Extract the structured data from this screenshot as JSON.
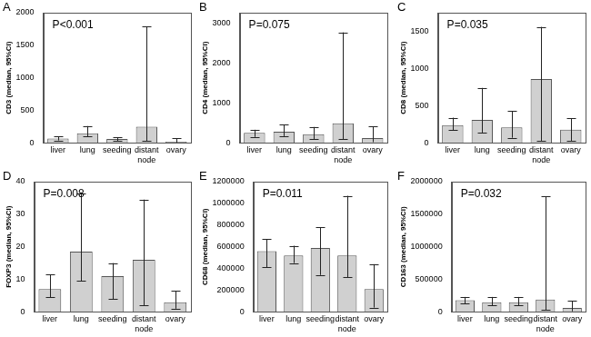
{
  "chart_data": [
    {
      "type": "bar",
      "title": "A",
      "annotation": "P<0.001",
      "y_label": "CD3 (median, 95%CI)",
      "categories": [
        "liver",
        "lung",
        "seeding",
        "distant node",
        "ovary"
      ],
      "values": [
        70,
        150,
        60,
        250,
        20
      ],
      "ci_low": [
        40,
        100,
        30,
        30,
        5
      ],
      "ci_high": [
        100,
        260,
        90,
        1790,
        70
      ],
      "color": "#d0d0d0",
      "ylim": [
        0,
        2000
      ],
      "yticks": [
        0,
        500,
        1000,
        1500,
        2000
      ],
      "grid": false
    },
    {
      "type": "bar",
      "title": "B",
      "annotation": "P=0.075",
      "y_label": "CD4 (median, 95%CI)",
      "categories": [
        "liver",
        "lung",
        "seeding",
        "distant node",
        "ovary"
      ],
      "values": [
        250,
        280,
        220,
        490,
        120
      ],
      "ci_low": [
        150,
        170,
        100,
        100,
        20
      ],
      "ci_high": [
        330,
        460,
        400,
        2760,
        410
      ],
      "color": "#d0d0d0",
      "ylim": [
        0,
        3250
      ],
      "yticks": [
        0,
        1000,
        2000,
        3000
      ],
      "grid": false
    },
    {
      "type": "bar",
      "title": "C",
      "annotation": "P=0.035",
      "y_label": "CD8 (median, 95%CI)",
      "categories": [
        "liver",
        "lung",
        "seeding",
        "distant node",
        "ovary"
      ],
      "values": [
        240,
        310,
        210,
        860,
        180
      ],
      "ci_low": [
        170,
        140,
        70,
        30,
        30
      ],
      "ci_high": [
        340,
        740,
        430,
        1560,
        330
      ],
      "color": "#d0d0d0",
      "ylim": [
        0,
        1750
      ],
      "yticks": [
        0,
        500,
        1000,
        1500
      ],
      "grid": false
    },
    {
      "type": "bar",
      "title": "D",
      "annotation": "P=0.008",
      "y_label": "FOXP3 (median, 95%CI)",
      "categories": [
        "liver",
        "lung",
        "seeding",
        "distant node",
        "ovary"
      ],
      "values": [
        7,
        18.5,
        11,
        16,
        3
      ],
      "ci_low": [
        4.5,
        9.5,
        4,
        2,
        1
      ],
      "ci_high": [
        11.5,
        36.5,
        15,
        34.5,
        6.5
      ],
      "color": "#d0d0d0",
      "ylim": [
        0,
        40
      ],
      "yticks": [
        0,
        10,
        20,
        30,
        40
      ],
      "grid": false
    },
    {
      "type": "bar",
      "title": "E",
      "annotation": "P=0.011",
      "y_label": "CD68 (median, 95%CI)",
      "categories": [
        "liver",
        "lung",
        "seeding",
        "distant node",
        "ovary"
      ],
      "values": [
        560000,
        520000,
        590000,
        520000,
        210000
      ],
      "ci_low": [
        410000,
        450000,
        340000,
        320000,
        40000
      ],
      "ci_high": [
        670000,
        610000,
        780000,
        1070000,
        440000
      ],
      "color": "#d0d0d0",
      "ylim": [
        0,
        1200000
      ],
      "yticks": [
        0,
        200000,
        400000,
        600000,
        800000,
        1000000,
        1200000
      ],
      "grid": false
    },
    {
      "type": "bar",
      "title": "F",
      "annotation": "P=0.032",
      "y_label": "CD163 (median, 95%CI)",
      "categories": [
        "liver",
        "lung",
        "seeding",
        "distant node",
        "ovary"
      ],
      "values": [
        180000,
        150000,
        150000,
        190000,
        60000
      ],
      "ci_low": [
        130000,
        100000,
        100000,
        30000,
        10000
      ],
      "ci_high": [
        230000,
        230000,
        230000,
        1770000,
        170000
      ],
      "color": "#d0d0d0",
      "ylim": [
        0,
        2000000
      ],
      "yticks": [
        0,
        500000,
        1000000,
        1500000,
        2000000
      ],
      "grid": false
    }
  ]
}
